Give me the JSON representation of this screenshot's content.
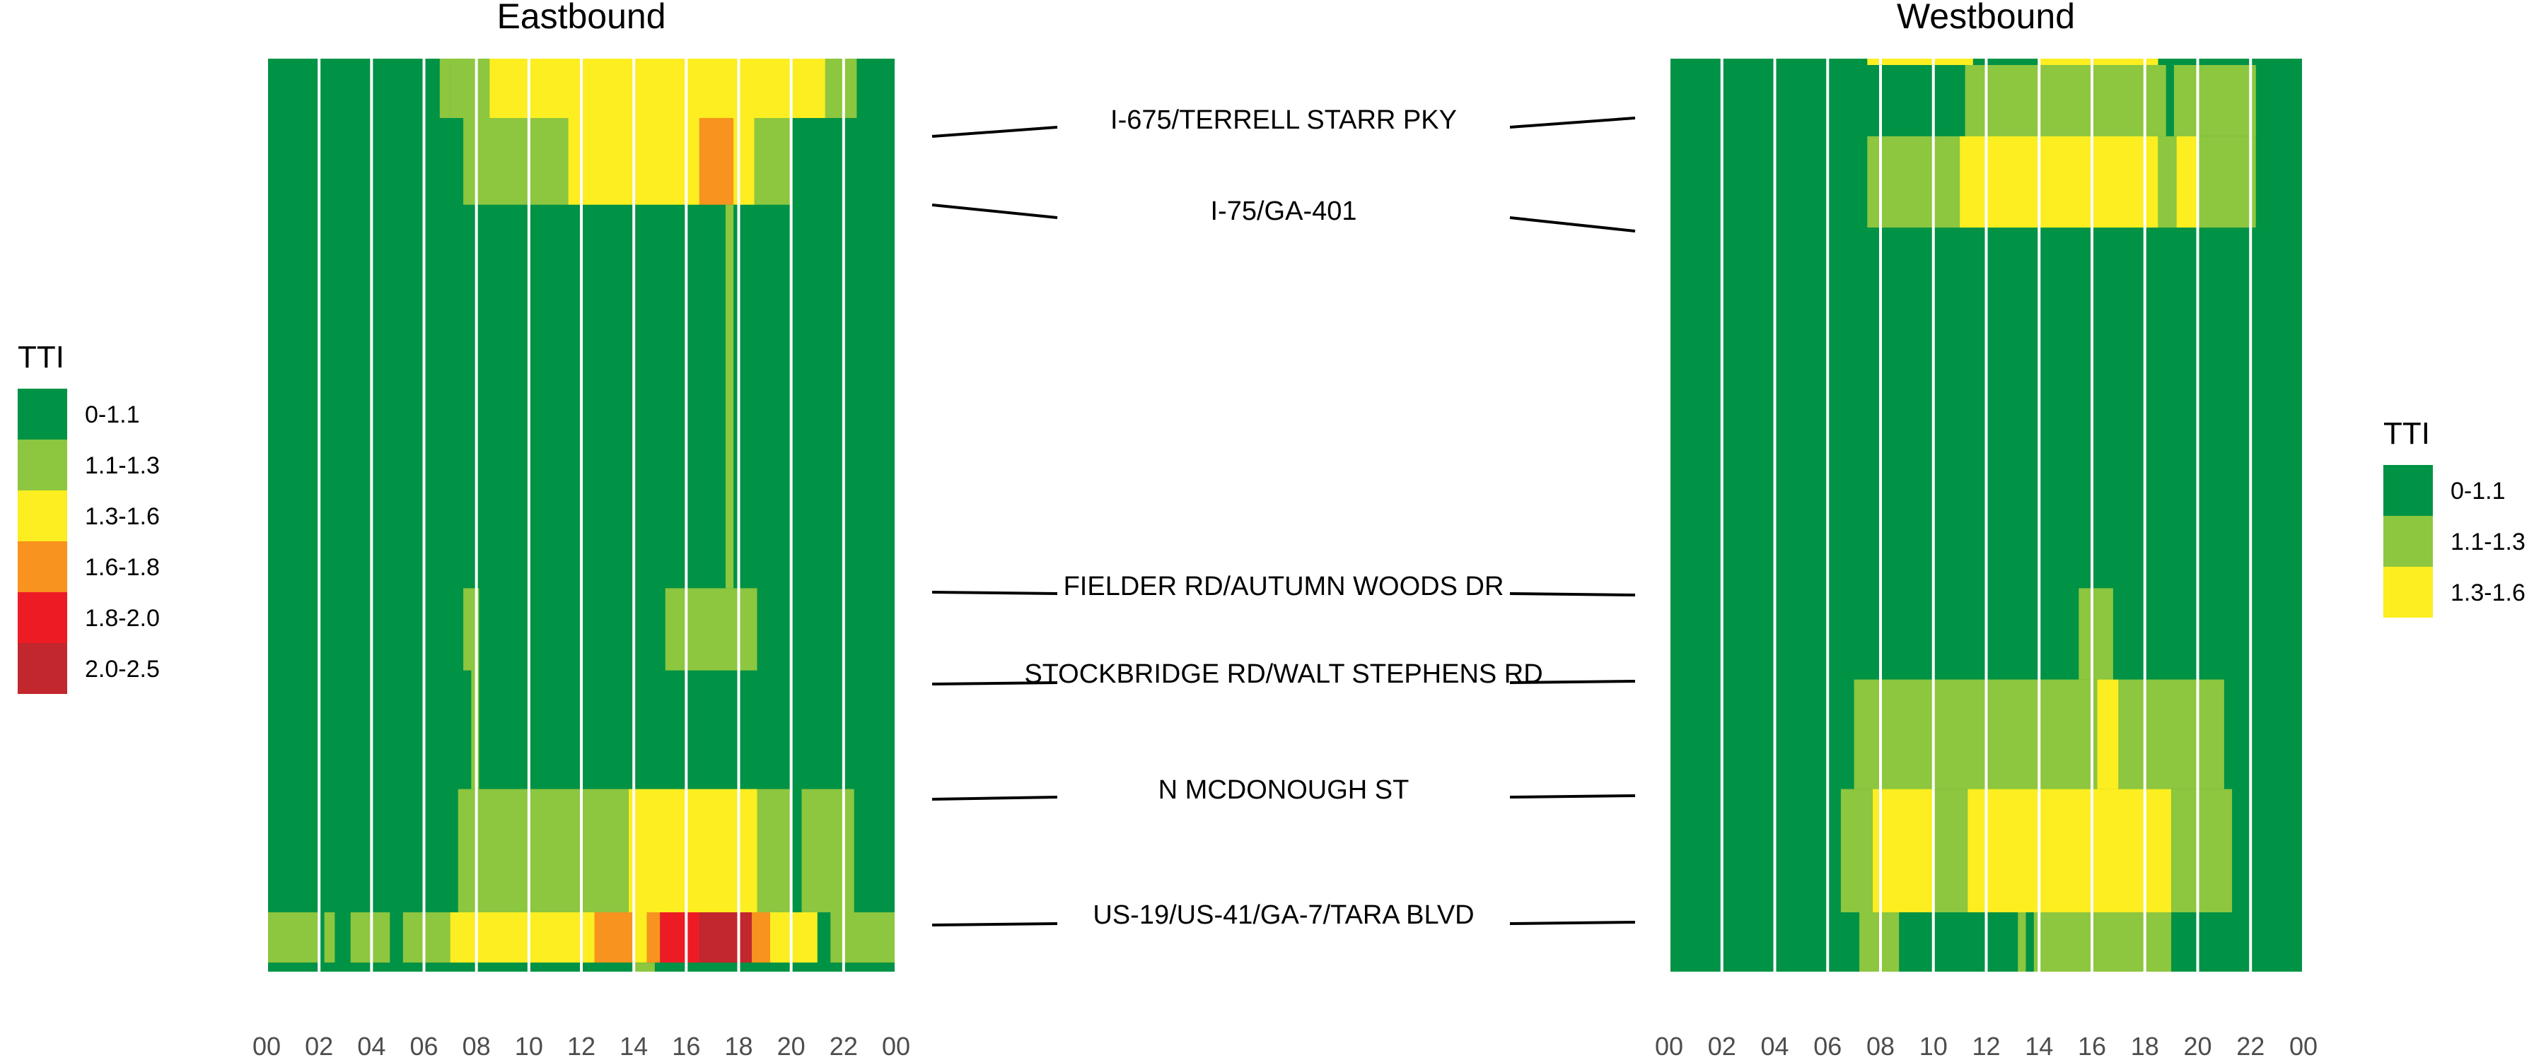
{
  "chart_data": {
    "type": "heatmap",
    "hours": [
      "00",
      "02",
      "04",
      "06",
      "08",
      "10",
      "12",
      "14",
      "16",
      "18",
      "20",
      "22",
      "00"
    ],
    "roads": [
      "I-675/TERRELL STARR PKY",
      "I-75/GA-401",
      "FIELDER RD/AUTUMN WOODS DR",
      "STOCKBRIDGE RD/WALT STEPHENS RD",
      "N MCDONOUGH ST",
      "US-19/US-41/GA-7/TARA BLVD"
    ],
    "colors": {
      "0-1.1": "#009245",
      "1.1-1.3": "#8dc63f",
      "1.3-1.6": "#fcee21",
      "1.6-1.8": "#f7931e",
      "1.8-2.0": "#ed1c24",
      "2.0-2.5": "#c1272d"
    },
    "panels": [
      {
        "title": "Eastbound",
        "legend": {
          "title": "TTI",
          "items": [
            "0-1.1",
            "1.1-1.3",
            "1.3-1.6",
            "1.6-1.8",
            "1.8-2.0",
            "2.0-2.5"
          ]
        },
        "cells": [
          {
            "h0": 6.6,
            "h1": 7.0,
            "p0": 0.0,
            "p1": 0.065,
            "c": "1.1-1.3"
          },
          {
            "h0": 7.0,
            "h1": 8.5,
            "p0": 0.0,
            "p1": 0.065,
            "c": "1.1-1.3"
          },
          {
            "h0": 8.5,
            "h1": 21.3,
            "p0": 0.0,
            "p1": 0.065,
            "c": "1.3-1.6"
          },
          {
            "h0": 21.3,
            "h1": 22.5,
            "p0": 0.0,
            "p1": 0.065,
            "c": "1.1-1.3"
          },
          {
            "h0": 7.5,
            "h1": 11.5,
            "p0": 0.065,
            "p1": 0.16,
            "c": "1.1-1.3"
          },
          {
            "h0": 11.5,
            "h1": 16.5,
            "p0": 0.065,
            "p1": 0.16,
            "c": "1.3-1.6"
          },
          {
            "h0": 16.5,
            "h1": 17.8,
            "p0": 0.065,
            "p1": 0.16,
            "c": "1.6-1.8"
          },
          {
            "h0": 17.8,
            "h1": 18.6,
            "p0": 0.065,
            "p1": 0.16,
            "c": "1.3-1.6"
          },
          {
            "h0": 18.6,
            "h1": 20.0,
            "p0": 0.065,
            "p1": 0.16,
            "c": "1.1-1.3"
          },
          {
            "h0": 17.5,
            "h1": 17.8,
            "p0": 0.16,
            "p1": 0.58,
            "c": "1.1-1.3"
          },
          {
            "h0": 7.5,
            "h1": 8.1,
            "p0": 0.58,
            "p1": 0.67,
            "c": "1.1-1.3"
          },
          {
            "h0": 15.2,
            "h1": 18.7,
            "p0": 0.58,
            "p1": 0.67,
            "c": "1.1-1.3"
          },
          {
            "h0": 7.8,
            "h1": 8.1,
            "p0": 0.67,
            "p1": 0.8,
            "c": "1.1-1.3"
          },
          {
            "h0": 7.3,
            "h1": 13.8,
            "p0": 0.8,
            "p1": 0.935,
            "c": "1.1-1.3"
          },
          {
            "h0": 13.8,
            "h1": 18.7,
            "p0": 0.8,
            "p1": 0.935,
            "c": "1.3-1.6"
          },
          {
            "h0": 18.7,
            "h1": 20.0,
            "p0": 0.8,
            "p1": 0.935,
            "c": "1.1-1.3"
          },
          {
            "h0": 20.4,
            "h1": 22.4,
            "p0": 0.8,
            "p1": 0.935,
            "c": "1.1-1.3"
          },
          {
            "h0": 0.0,
            "h1": 2.0,
            "p0": 0.935,
            "p1": 0.99,
            "c": "1.1-1.3"
          },
          {
            "h0": 2.2,
            "h1": 2.6,
            "p0": 0.935,
            "p1": 0.99,
            "c": "1.1-1.3"
          },
          {
            "h0": 3.2,
            "h1": 4.7,
            "p0": 0.935,
            "p1": 0.99,
            "c": "1.1-1.3"
          },
          {
            "h0": 5.2,
            "h1": 7.0,
            "p0": 0.935,
            "p1": 0.99,
            "c": "1.1-1.3"
          },
          {
            "h0": 7.0,
            "h1": 12.5,
            "p0": 0.935,
            "p1": 0.99,
            "c": "1.3-1.6"
          },
          {
            "h0": 12.5,
            "h1": 14.0,
            "p0": 0.935,
            "p1": 0.99,
            "c": "1.6-1.8"
          },
          {
            "h0": 14.0,
            "h1": 14.5,
            "p0": 0.935,
            "p1": 0.99,
            "c": "1.3-1.6"
          },
          {
            "h0": 14.5,
            "h1": 15.0,
            "p0": 0.935,
            "p1": 0.99,
            "c": "1.6-1.8"
          },
          {
            "h0": 15.0,
            "h1": 16.5,
            "p0": 0.935,
            "p1": 0.99,
            "c": "1.8-2.0"
          },
          {
            "h0": 16.5,
            "h1": 18.5,
            "p0": 0.935,
            "p1": 0.99,
            "c": "2.0-2.5"
          },
          {
            "h0": 18.5,
            "h1": 19.2,
            "p0": 0.935,
            "p1": 0.99,
            "c": "1.6-1.8"
          },
          {
            "h0": 19.2,
            "h1": 21.0,
            "p0": 0.935,
            "p1": 0.99,
            "c": "1.3-1.6"
          },
          {
            "h0": 21.5,
            "h1": 24.0,
            "p0": 0.935,
            "p1": 0.99,
            "c": "1.1-1.3"
          },
          {
            "h0": 14.0,
            "h1": 14.8,
            "p0": 0.99,
            "p1": 1.0,
            "c": "1.1-1.3"
          }
        ]
      },
      {
        "title": "Westbound",
        "legend": {
          "title": "TTI",
          "items": [
            "0-1.1",
            "1.1-1.3",
            "1.3-1.6"
          ]
        },
        "cells": [
          {
            "h0": 7.5,
            "h1": 11.5,
            "p0": 0.0,
            "p1": 0.007,
            "c": "1.3-1.6"
          },
          {
            "h0": 14.0,
            "h1": 18.5,
            "p0": 0.0,
            "p1": 0.007,
            "c": "1.3-1.6"
          },
          {
            "h0": 11.2,
            "h1": 18.8,
            "p0": 0.007,
            "p1": 0.085,
            "c": "1.1-1.3"
          },
          {
            "h0": 19.1,
            "h1": 22.2,
            "p0": 0.007,
            "p1": 0.085,
            "c": "1.1-1.3"
          },
          {
            "h0": 7.5,
            "h1": 11.0,
            "p0": 0.085,
            "p1": 0.185,
            "c": "1.1-1.3"
          },
          {
            "h0": 11.0,
            "h1": 18.5,
            "p0": 0.085,
            "p1": 0.185,
            "c": "1.3-1.6"
          },
          {
            "h0": 18.5,
            "h1": 19.2,
            "p0": 0.085,
            "p1": 0.185,
            "c": "1.1-1.3"
          },
          {
            "h0": 19.2,
            "h1": 20.0,
            "p0": 0.085,
            "p1": 0.185,
            "c": "1.3-1.6"
          },
          {
            "h0": 20.0,
            "h1": 22.2,
            "p0": 0.085,
            "p1": 0.185,
            "c": "1.1-1.3"
          },
          {
            "h0": 15.5,
            "h1": 16.8,
            "p0": 0.58,
            "p1": 0.68,
            "c": "1.1-1.3"
          },
          {
            "h0": 7.0,
            "h1": 16.2,
            "p0": 0.68,
            "p1": 0.8,
            "c": "1.1-1.3"
          },
          {
            "h0": 16.2,
            "h1": 17.0,
            "p0": 0.68,
            "p1": 0.8,
            "c": "1.3-1.6"
          },
          {
            "h0": 17.0,
            "h1": 21.0,
            "p0": 0.68,
            "p1": 0.8,
            "c": "1.1-1.3"
          },
          {
            "h0": 6.5,
            "h1": 7.7,
            "p0": 0.8,
            "p1": 0.935,
            "c": "1.1-1.3"
          },
          {
            "h0": 7.7,
            "h1": 10.0,
            "p0": 0.8,
            "p1": 0.935,
            "c": "1.3-1.6"
          },
          {
            "h0": 10.0,
            "h1": 11.3,
            "p0": 0.8,
            "p1": 0.935,
            "c": "1.1-1.3"
          },
          {
            "h0": 11.3,
            "h1": 19.0,
            "p0": 0.8,
            "p1": 0.935,
            "c": "1.3-1.6"
          },
          {
            "h0": 19.0,
            "h1": 21.3,
            "p0": 0.8,
            "p1": 0.935,
            "c": "1.1-1.3"
          },
          {
            "h0": 7.2,
            "h1": 8.7,
            "p0": 0.935,
            "p1": 1.0,
            "c": "1.1-1.3"
          },
          {
            "h0": 13.2,
            "h1": 13.5,
            "p0": 0.935,
            "p1": 1.0,
            "c": "1.1-1.3"
          },
          {
            "h0": 13.8,
            "h1": 19.0,
            "p0": 0.935,
            "p1": 1.0,
            "c": "1.1-1.3"
          }
        ]
      }
    ]
  }
}
